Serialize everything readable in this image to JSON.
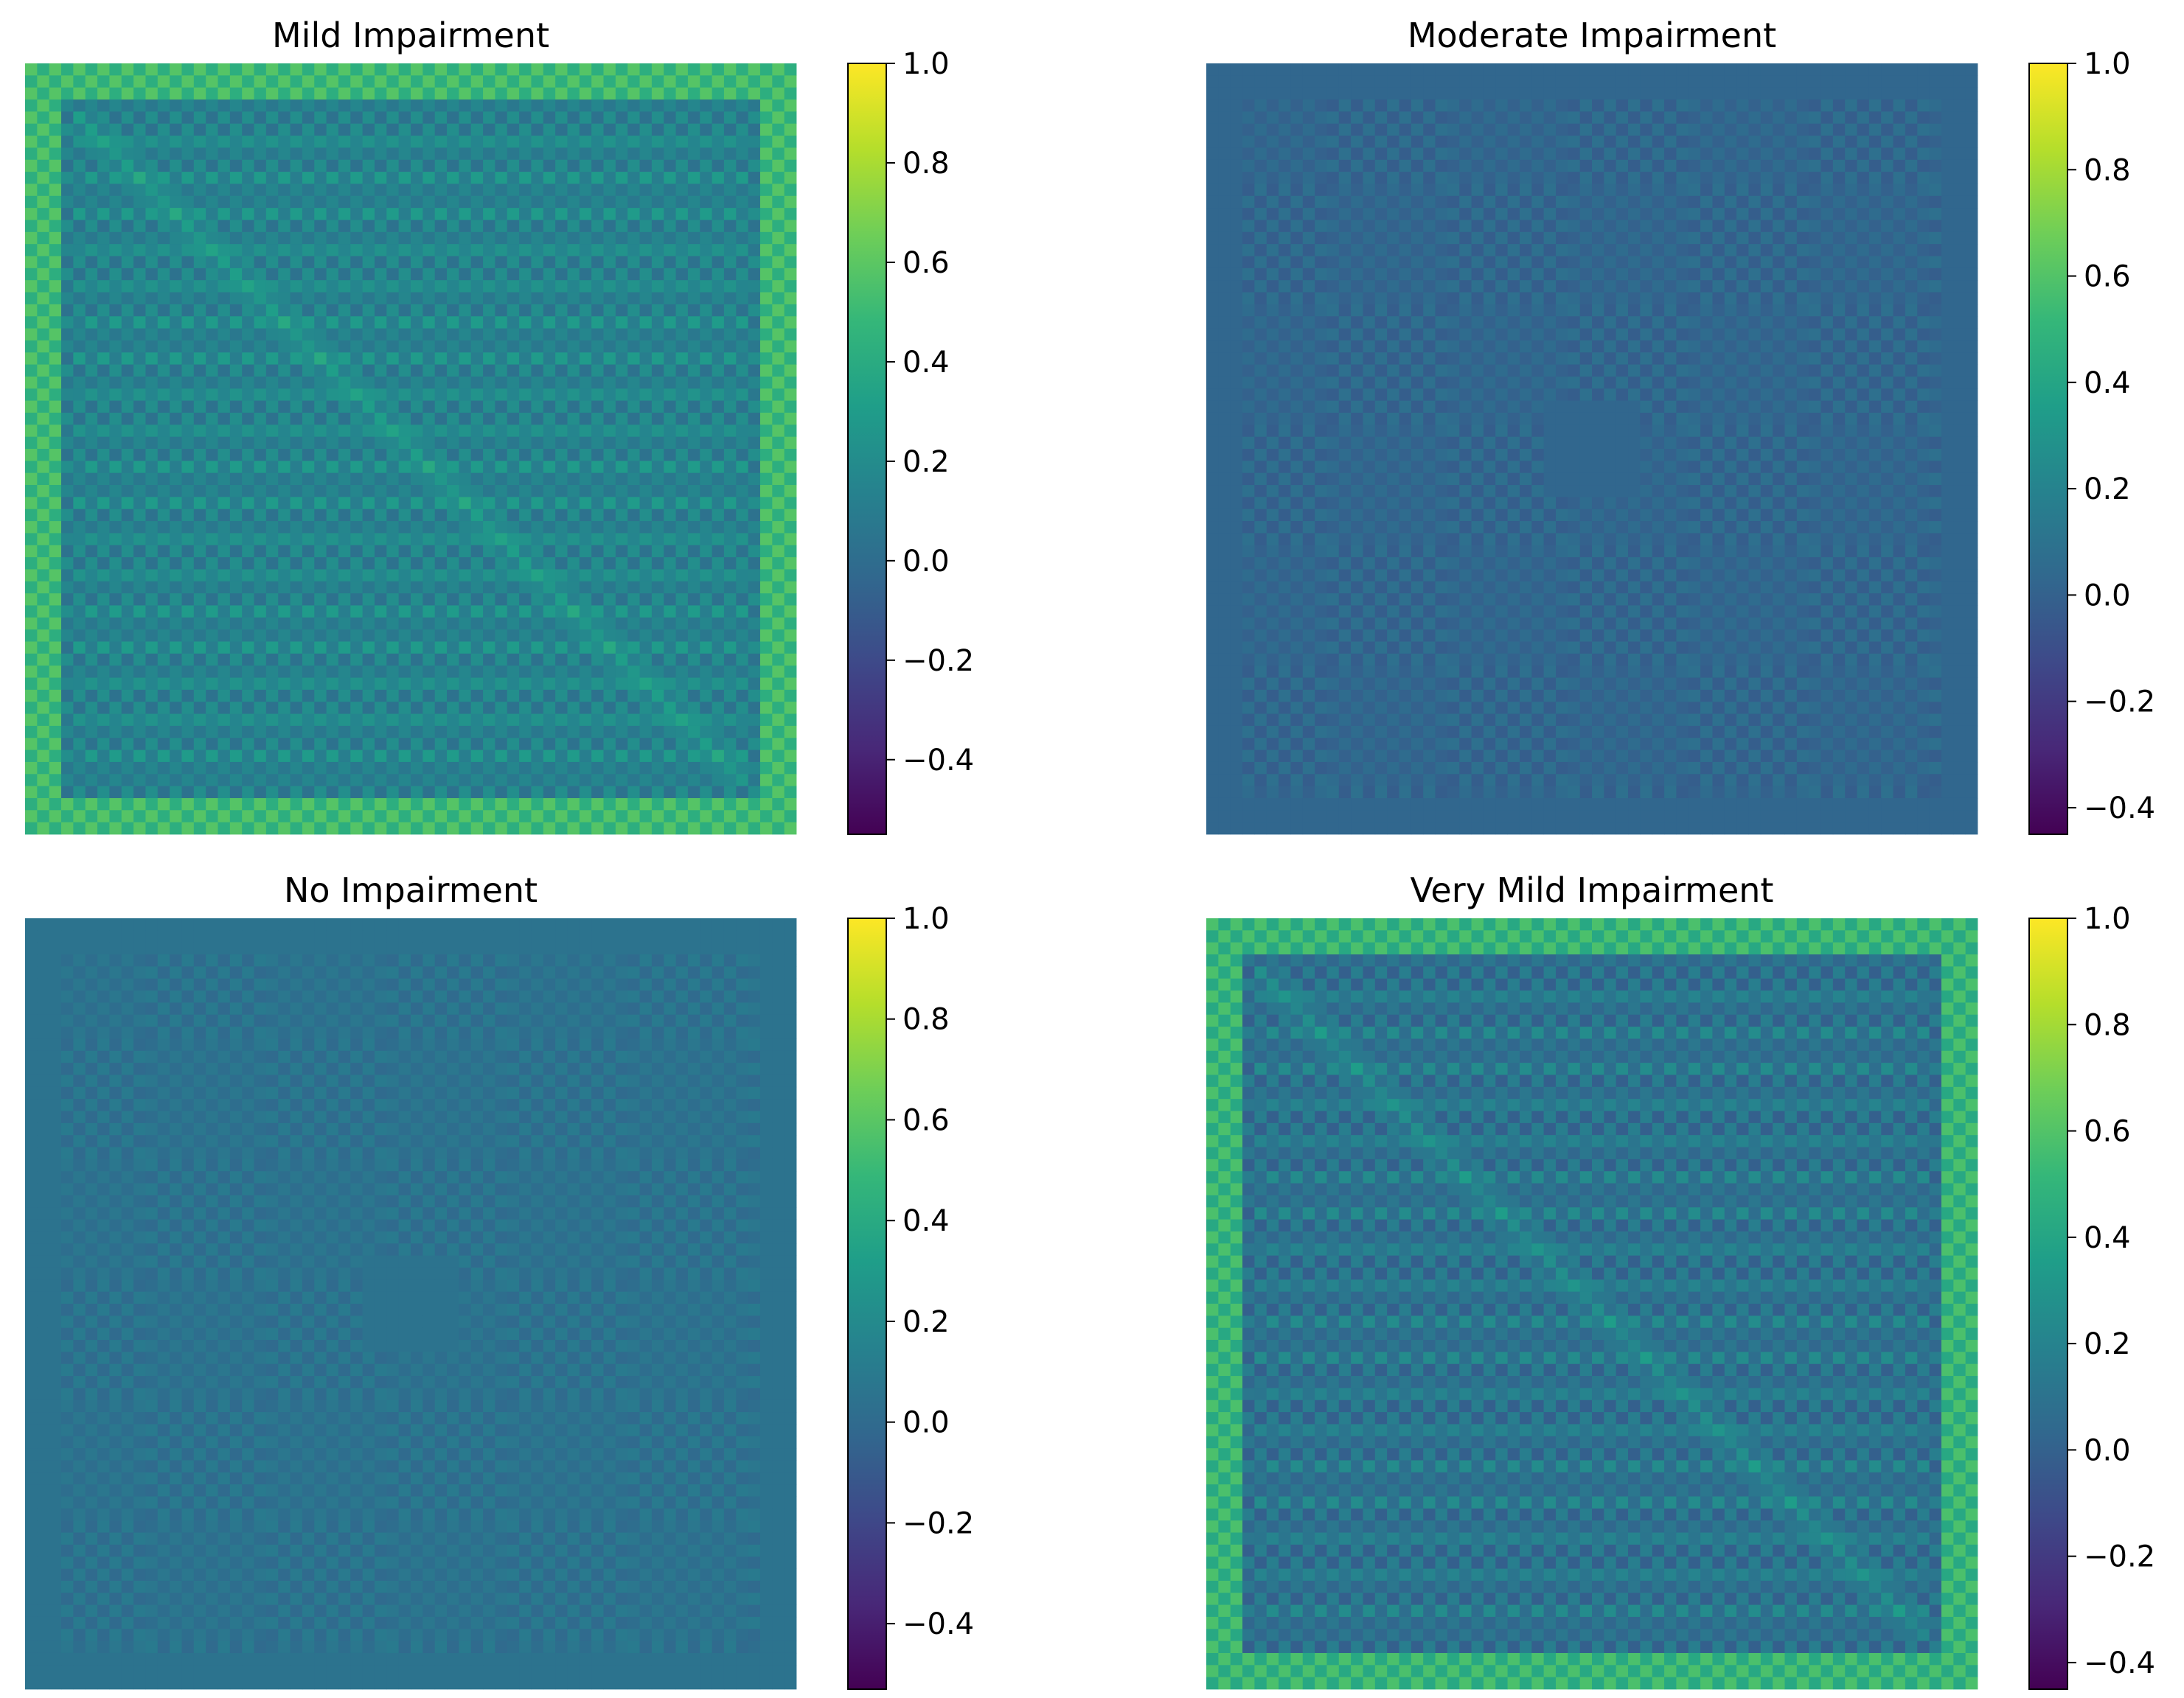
{
  "chart_data": [
    {
      "type": "heatmap",
      "title": "Mild Impairment",
      "pattern": "strong",
      "base_value": 0.12,
      "colorbar": {
        "min": -0.55,
        "max": 1.0,
        "ticks": [
          1.0,
          0.8,
          0.6,
          0.4,
          0.2,
          0.0,
          -0.2,
          -0.4
        ],
        "tick_labels": [
          "1.0",
          "0.8",
          "0.6",
          "0.4",
          "0.2",
          "0.0",
          "−0.2",
          "−0.4"
        ]
      }
    },
    {
      "type": "heatmap",
      "title": "Moderate Impairment",
      "pattern": "faint",
      "base_value": 0.03,
      "colorbar": {
        "min": -0.45,
        "max": 1.0,
        "ticks": [
          1.0,
          0.8,
          0.6,
          0.4,
          0.2,
          0.0,
          -0.2,
          -0.4
        ],
        "tick_labels": [
          "1.0",
          "0.8",
          "0.6",
          "0.4",
          "0.2",
          "0.0",
          "−0.2",
          "−0.4"
        ]
      }
    },
    {
      "type": "heatmap",
      "title": "No Impairment",
      "pattern": "faint",
      "base_value": 0.05,
      "colorbar": {
        "min": -0.53,
        "max": 1.0,
        "ticks": [
          1.0,
          0.8,
          0.6,
          0.4,
          0.2,
          0.0,
          -0.2,
          -0.4
        ],
        "tick_labels": [
          "1.0",
          "0.8",
          "0.6",
          "0.4",
          "0.2",
          "0.0",
          "−0.2",
          "−0.4"
        ]
      }
    },
    {
      "type": "heatmap",
      "title": "Very Mild Impairment",
      "pattern": "strong",
      "base_value": 0.08,
      "colorbar": {
        "min": -0.45,
        "max": 1.0,
        "ticks": [
          1.0,
          0.8,
          0.6,
          0.4,
          0.2,
          0.0,
          -0.2,
          -0.4
        ],
        "tick_labels": [
          "1.0",
          "0.8",
          "0.6",
          "0.4",
          "0.2",
          "0.0",
          "−0.2",
          "−0.4"
        ]
      }
    }
  ],
  "colormap": {
    "name": "viridis",
    "stops": [
      "#440154",
      "#482878",
      "#3e4989",
      "#31688e",
      "#26828e",
      "#1f9e89",
      "#35b779",
      "#6ece58",
      "#b5de2b",
      "#fde725"
    ]
  }
}
